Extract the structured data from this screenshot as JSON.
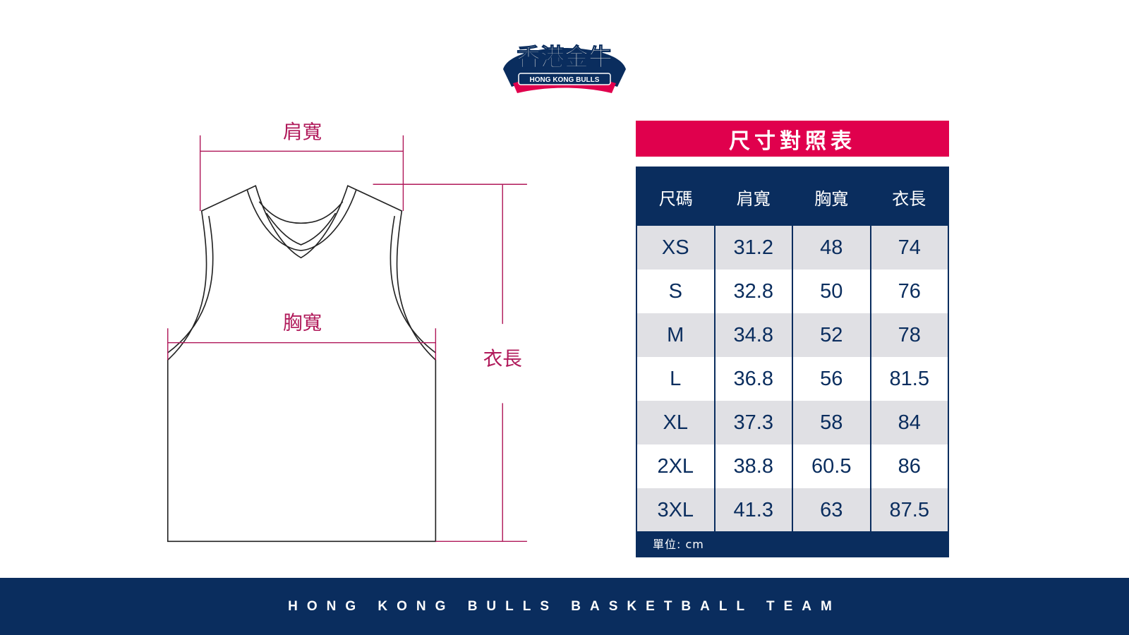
{
  "logo": {
    "chinese": "香港金牛",
    "english": "HONG KONG BULLS"
  },
  "diagram": {
    "shoulder_label": "肩寬",
    "chest_label": "胸寬",
    "length_label": "衣長",
    "accent_color": "#b0195a"
  },
  "table": {
    "title": "尺寸對照表",
    "headers": [
      "尺碼",
      "肩寬",
      "胸寬",
      "衣長"
    ],
    "rows": [
      [
        "XS",
        "31.2",
        "48",
        "74"
      ],
      [
        "S",
        "32.8",
        "50",
        "76"
      ],
      [
        "M",
        "34.8",
        "52",
        "78"
      ],
      [
        "L",
        "36.8",
        "56",
        "81.5"
      ],
      [
        "XL",
        "37.3",
        "58",
        "84"
      ],
      [
        "2XL",
        "38.8",
        "60.5",
        "86"
      ],
      [
        "3XL",
        "41.3",
        "63",
        "87.5"
      ]
    ],
    "unit_note": "單位: cm",
    "header_color": "#0a2d5e",
    "title_color": "#e0004d"
  },
  "footer": {
    "text": "HONG KONG BULLS BASKETBALL TEAM"
  }
}
